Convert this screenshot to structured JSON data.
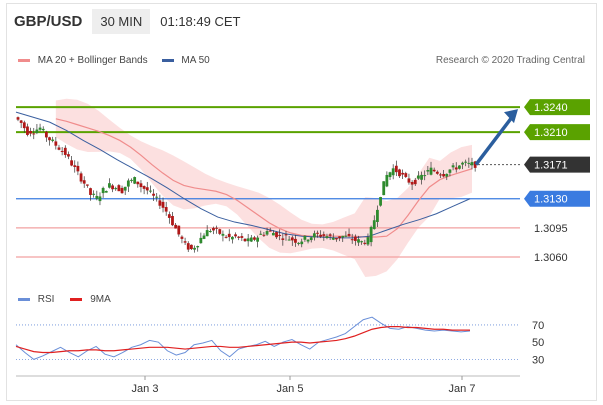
{
  "header": {
    "pair": "GBP/USD",
    "timeframe": "30 MIN",
    "time": "01:18:49 CET"
  },
  "legend": {
    "items": [
      {
        "label": "MA 20 + Bollinger Bands",
        "color": "#f08c8c"
      },
      {
        "label": "MA 50",
        "color": "#3a5f9f"
      }
    ],
    "research": "Research © 2020 Trading Central"
  },
  "rsi_legend": {
    "items": [
      {
        "label": "RSI",
        "color": "#6a8fd8"
      },
      {
        "label": "9MA",
        "color": "#e02020"
      }
    ]
  },
  "colors": {
    "resistance": "#5aa200",
    "pivot": "#3a7be0",
    "support": "#f2a0a0",
    "current": "#333333",
    "arrow": "#2b5e9e",
    "band": "#fbd6d6"
  },
  "chart_data": [
    {
      "type": "candlestick",
      "title": "GBP/USD",
      "timeframe": "30 MIN",
      "x_ticks": [
        "Jan 3",
        "Jan 5",
        "Jan 7"
      ],
      "price_levels": [
        {
          "value": "1.3240",
          "kind": "resistance",
          "label": "1.3240"
        },
        {
          "value": "1.3210",
          "kind": "resistance",
          "label": "1.3210"
        },
        {
          "value": "1.3171",
          "kind": "current",
          "label": "1.3171"
        },
        {
          "value": "1.3130",
          "kind": "pivot",
          "label": "1.3130"
        },
        {
          "value": "1.3095",
          "kind": "support",
          "label": "1.3095"
        },
        {
          "value": "1.3060",
          "kind": "support",
          "label": "1.3060"
        }
      ],
      "ylim": [
        1.303,
        1.3275
      ],
      "projection": {
        "from": 1.3171,
        "to": 1.324,
        "direction": "up"
      },
      "close_path": [
        1.3228,
        1.3221,
        1.321,
        1.3212,
        1.3215,
        1.3205,
        1.3198,
        1.3191,
        1.3184,
        1.3172,
        1.316,
        1.3149,
        1.3135,
        1.3131,
        1.314,
        1.3146,
        1.3144,
        1.314,
        1.315,
        1.3153,
        1.3145,
        1.314,
        1.3132,
        1.3125,
        1.3115,
        1.3101,
        1.3087,
        1.3074,
        1.3069,
        1.3077,
        1.3088,
        1.3093,
        1.3091,
        1.3086,
        1.3083,
        1.3084,
        1.3081,
        1.3079,
        1.3082,
        1.3087,
        1.3091,
        1.3089,
        1.3085,
        1.3084,
        1.3081,
        1.3079,
        1.3082,
        1.3085,
        1.3087,
        1.3086,
        1.3084,
        1.3083,
        1.3085,
        1.3083,
        1.308,
        1.3078,
        1.308,
        1.3105,
        1.3136,
        1.3158,
        1.3166,
        1.3161,
        1.3153,
        1.3149,
        1.3154,
        1.316,
        1.3165,
        1.3162,
        1.316,
        1.3165,
        1.3168,
        1.3172,
        1.3171
      ],
      "ma20": [
        1.3226,
        1.3223,
        1.3219,
        1.3215,
        1.3211,
        1.3206,
        1.32,
        1.3192,
        1.3182,
        1.3171,
        1.3161,
        1.3152,
        1.3146,
        1.3143,
        1.3141,
        1.3139,
        1.3135,
        1.3128,
        1.3119,
        1.311,
        1.3101,
        1.3094,
        1.3089,
        1.3086,
        1.3085,
        1.3085,
        1.3085,
        1.3085,
        1.3085,
        1.3084,
        1.3084,
        1.3085,
        1.3094,
        1.311,
        1.3128,
        1.3144,
        1.3153,
        1.3158,
        1.3162,
        1.3166
      ],
      "ma50": [
        1.3234,
        1.3228,
        1.3222,
        1.3212,
        1.32,
        1.3189,
        1.3177,
        1.3166,
        1.3155,
        1.3143,
        1.313,
        1.3118,
        1.3108,
        1.3102,
        1.3098,
        1.3093,
        1.3088,
        1.3085,
        1.3084,
        1.3083,
        1.3083,
        1.3085,
        1.3092,
        1.3099,
        1.3105,
        1.3112,
        1.3121,
        1.313
      ]
    },
    {
      "type": "line",
      "title": "RSI",
      "series": [
        {
          "name": "RSI",
          "values": [
            47,
            38,
            30,
            34,
            39,
            44,
            38,
            33,
            40,
            45,
            36,
            33,
            38,
            44,
            47,
            52,
            50,
            40,
            35,
            38,
            47,
            49,
            52,
            40,
            33,
            42,
            45,
            47,
            51,
            45,
            50,
            53,
            47,
            42,
            50,
            53,
            56,
            60,
            68,
            76,
            79,
            72,
            66,
            65,
            68,
            66,
            64,
            63,
            64,
            63,
            62,
            63
          ]
        },
        {
          "name": "9MA",
          "values": [
            45,
            42,
            39,
            38,
            38,
            39,
            40,
            40,
            41,
            41,
            40,
            40,
            41,
            42,
            43,
            44,
            44,
            44,
            43,
            42,
            43,
            44,
            45,
            45,
            44,
            44,
            45,
            46,
            47,
            48,
            49,
            50,
            50,
            49,
            50,
            51,
            52,
            54,
            57,
            61,
            65,
            67,
            68,
            68,
            67,
            67,
            66,
            65,
            65,
            64,
            64,
            64
          ]
        }
      ],
      "y_ticks": [
        "70",
        "50",
        "30"
      ],
      "ylim": [
        20,
        85
      ]
    }
  ]
}
